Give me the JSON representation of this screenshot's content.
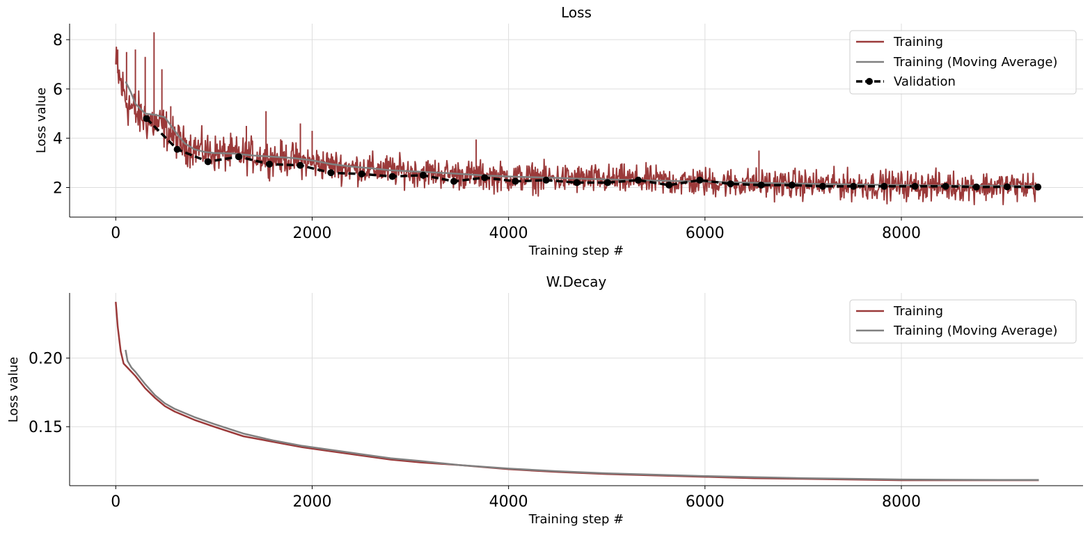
{
  "chart_data": [
    {
      "type": "line",
      "title": "Loss",
      "xlabel": "Training step #",
      "ylabel": "Loss value",
      "xlim": [
        -470,
        9850
      ],
      "ylim": [
        0.8,
        8.65
      ],
      "xticks": [
        0,
        2000,
        4000,
        6000,
        8000
      ],
      "yticks": [
        2,
        4,
        6,
        8
      ],
      "xtick_labels": [
        "0",
        "2000",
        "4000",
        "6000",
        "8000"
      ],
      "ytick_labels": [
        "2",
        "4",
        "6",
        "8"
      ],
      "grid": true,
      "legend_position": "top-right",
      "colors": {
        "training": "#9b3a3a",
        "moving_average": "#808080",
        "validation": "#000000"
      },
      "series": [
        {
          "name": "Training",
          "style": "noisy-line",
          "x": [
            0,
            100,
            200,
            300,
            400,
            500,
            600,
            700,
            800,
            900,
            1000,
            1200,
            1400,
            1600,
            1800,
            2000,
            2200,
            2400,
            2600,
            2800,
            3000,
            3200,
            3400,
            3600,
            3800,
            4000,
            4400,
            4800,
            5200,
            5600,
            6000,
            6400,
            6800,
            7200,
            7600,
            8000,
            8400,
            8800,
            9400
          ],
          "values": [
            6.9,
            5.6,
            5.0,
            4.8,
            4.6,
            4.4,
            4.0,
            3.7,
            3.6,
            3.5,
            3.4,
            3.35,
            3.3,
            3.2,
            3.15,
            3.0,
            2.9,
            2.8,
            2.75,
            2.7,
            2.65,
            2.6,
            2.55,
            2.5,
            2.45,
            2.42,
            2.38,
            2.33,
            2.3,
            2.25,
            2.22,
            2.18,
            2.15,
            2.12,
            2.1,
            2.08,
            2.06,
            2.05,
            2.05
          ],
          "band": [
            1.4,
            1.4,
            1.2,
            1.2,
            1.2,
            1.1,
            1.0,
            1.0,
            1.0,
            1.0,
            1.0,
            0.95,
            0.95,
            0.9,
            0.9,
            0.9,
            0.85,
            0.85,
            0.85,
            0.85,
            0.8,
            0.8,
            0.8,
            0.8,
            0.8,
            0.8,
            0.8,
            0.8,
            0.8,
            0.8,
            0.8,
            0.8,
            0.8,
            0.8,
            0.8,
            0.8,
            0.8,
            0.8,
            0.8
          ],
          "spikes": [
            [
              20,
              7.6
            ],
            [
              110,
              7.5
            ],
            [
              200,
              7.6
            ],
            [
              300,
              7.3
            ],
            [
              390,
              8.3
            ],
            [
              470,
              6.8
            ],
            [
              560,
              5.3
            ],
            [
              1330,
              4.5
            ],
            [
              1530,
              5.1
            ],
            [
              1880,
              4.6
            ],
            [
              2000,
              4.3
            ],
            [
              3670,
              3.95
            ],
            [
              6550,
              3.5
            ]
          ]
        },
        {
          "name": "Training (Moving Average)",
          "x": [
            100,
            150,
            200,
            300,
            400,
            500,
            600,
            700,
            800,
            900,
            1000,
            1200,
            1400,
            1600,
            1800,
            2000,
            2200,
            2400,
            2600,
            2800,
            3000,
            3200,
            3400,
            3600,
            3800,
            4000,
            4400,
            4800,
            5200,
            5600,
            6000,
            6400,
            6800,
            7200,
            7600,
            8000,
            8400,
            8800,
            9400
          ],
          "values": [
            6.3,
            5.9,
            5.4,
            5.0,
            4.95,
            4.85,
            4.3,
            3.8,
            3.55,
            3.45,
            3.4,
            3.38,
            3.3,
            3.25,
            3.2,
            3.1,
            2.95,
            2.85,
            2.78,
            2.7,
            2.66,
            2.62,
            2.58,
            2.53,
            2.48,
            2.45,
            2.4,
            2.35,
            2.31,
            2.27,
            2.24,
            2.2,
            2.17,
            2.14,
            2.12,
            2.1,
            2.08,
            2.07,
            2.06
          ]
        },
        {
          "name": "Validation",
          "style": "dashed-markers",
          "x": [
            313,
            626,
            939,
            1252,
            1565,
            1878,
            2191,
            2504,
            2817,
            3130,
            3443,
            3756,
            4069,
            4382,
            4695,
            5008,
            5321,
            5634,
            5947,
            6260,
            6573,
            6886,
            7199,
            7512,
            7825,
            8138,
            8451,
            8764,
            9077,
            9390
          ],
          "values": [
            4.8,
            3.55,
            3.05,
            3.25,
            2.95,
            2.9,
            2.6,
            2.55,
            2.45,
            2.5,
            2.25,
            2.4,
            2.25,
            2.3,
            2.2,
            2.2,
            2.3,
            2.1,
            2.3,
            2.15,
            2.1,
            2.1,
            2.05,
            2.05,
            2.05,
            2.05,
            2.05,
            2.02,
            2.03,
            2.02
          ]
        }
      ]
    },
    {
      "type": "line",
      "title": "W.Decay",
      "xlabel": "Training step #",
      "ylabel": "Loss value",
      "xlim": [
        -470,
        9850
      ],
      "ylim": [
        0.107,
        0.2475
      ],
      "xticks": [
        0,
        2000,
        4000,
        6000,
        8000
      ],
      "yticks": [
        0.15,
        0.2
      ],
      "xtick_labels": [
        "0",
        "2000",
        "4000",
        "6000",
        "8000"
      ],
      "ytick_labels": [
        "0.15",
        "0.20"
      ],
      "grid": true,
      "legend_position": "top-right",
      "colors": {
        "training": "#9b3a3a",
        "moving_average": "#808080"
      },
      "series": [
        {
          "name": "Training",
          "x": [
            0,
            20,
            50,
            80,
            120,
            200,
            300,
            400,
            500,
            600,
            800,
            1000,
            1300,
            1600,
            1900,
            2200,
            2500,
            2800,
            3100,
            3500,
            4000,
            4500,
            5000,
            5500,
            6000,
            6500,
            7000,
            7500,
            8000,
            8500,
            9000,
            9400
          ],
          "values": [
            0.241,
            0.223,
            0.205,
            0.196,
            0.193,
            0.187,
            0.178,
            0.171,
            0.165,
            0.161,
            0.155,
            0.15,
            0.143,
            0.139,
            0.135,
            0.132,
            0.129,
            0.126,
            0.124,
            0.122,
            0.119,
            0.117,
            0.1155,
            0.1145,
            0.1135,
            0.1125,
            0.112,
            0.1115,
            0.111,
            0.111,
            0.111,
            0.111
          ]
        },
        {
          "name": "Training (Moving Average)",
          "x": [
            100,
            120,
            160,
            200,
            300,
            400,
            500,
            600,
            800,
            1000,
            1300,
            1600,
            1900,
            2200,
            2500,
            2800,
            3100,
            3500,
            4000,
            4500,
            5000,
            5500,
            6000,
            6500,
            7000,
            7500,
            8000,
            8500,
            9000,
            9400
          ],
          "values": [
            0.206,
            0.198,
            0.193,
            0.19,
            0.181,
            0.173,
            0.167,
            0.163,
            0.157,
            0.152,
            0.145,
            0.14,
            0.136,
            0.133,
            0.13,
            0.127,
            0.125,
            0.122,
            0.1195,
            0.1175,
            0.116,
            0.115,
            0.114,
            0.1132,
            0.1125,
            0.112,
            0.1115,
            0.1113,
            0.1112,
            0.1112
          ]
        }
      ]
    }
  ]
}
